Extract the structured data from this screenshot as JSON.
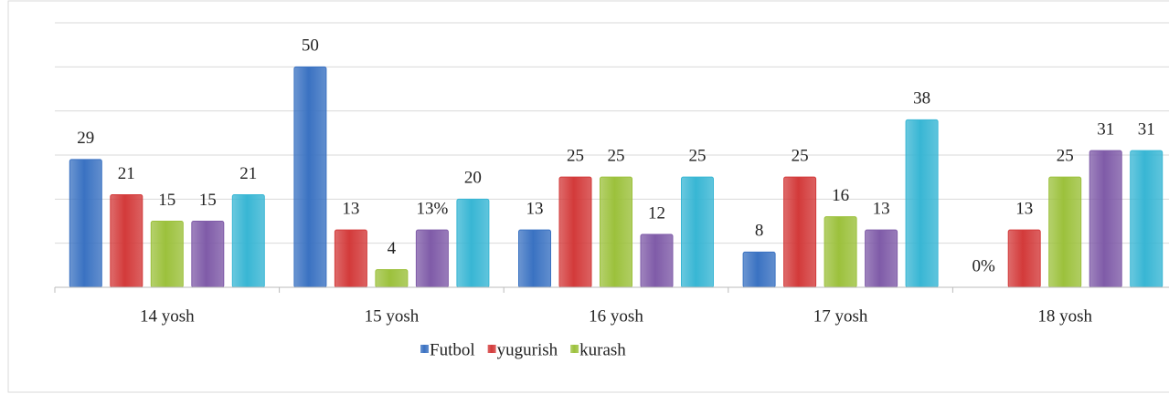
{
  "chart_data": {
    "type": "bar",
    "categories": [
      "14 yosh",
      "15 yosh",
      "16 yosh",
      "17 yosh",
      "18 yosh"
    ],
    "series": [
      {
        "name": "Futbol",
        "color": "#3a72c2",
        "values": [
          29,
          50,
          13,
          8,
          0
        ],
        "value_labels": [
          "29",
          "50",
          "13",
          "8",
          "0%"
        ]
      },
      {
        "name": "yugurish",
        "color": "#d33a3a",
        "values": [
          21,
          13,
          25,
          25,
          13
        ]
      },
      {
        "name": "kurash",
        "color": "#9cc13c",
        "values": [
          15,
          4,
          25,
          16,
          25
        ]
      },
      {
        "color": "#7f5ba8",
        "values": [
          15,
          13,
          12,
          13,
          31
        ],
        "value_labels": [
          "15",
          "13%",
          "12",
          "13",
          "31"
        ]
      },
      {
        "color": "#38b6d4",
        "values": [
          21,
          20,
          25,
          38,
          31
        ]
      }
    ],
    "ylim": [
      0,
      60
    ],
    "yticks": [
      0,
      10,
      20,
      30,
      40,
      50,
      60
    ],
    "grid": true
  }
}
